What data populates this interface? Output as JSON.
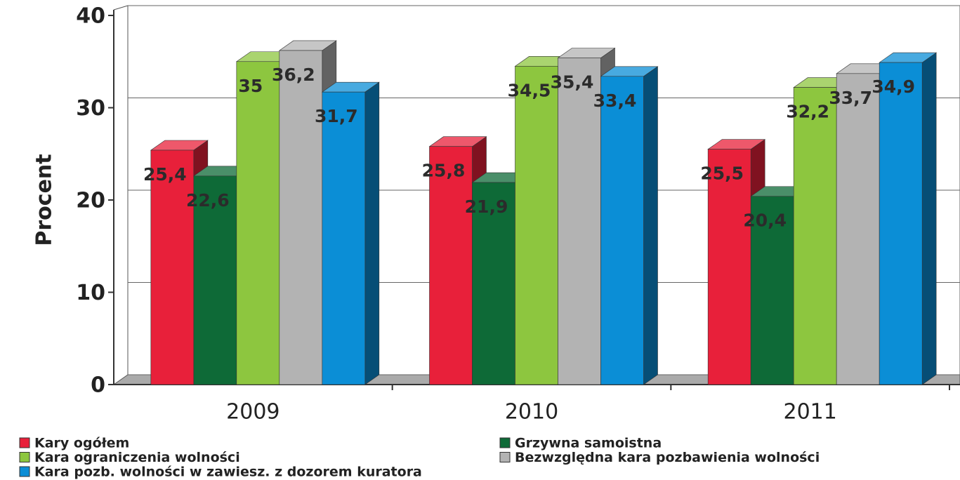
{
  "chart_data": {
    "type": "bar3d",
    "ylabel": "Procent",
    "categories": [
      "2009",
      "2010",
      "2011"
    ],
    "ylim": [
      0,
      40
    ],
    "yticks": [
      0,
      10,
      20,
      30,
      40
    ],
    "grid": true,
    "series": [
      {
        "name": "Kary ogółem",
        "color": "#e8203a",
        "values": [
          25.4,
          25.8,
          25.5
        ],
        "value_labels": [
          "25,4",
          "25,8",
          "25,5"
        ]
      },
      {
        "name": "Grzywna samoistna",
        "color": "#0e6a37",
        "values": [
          22.6,
          21.9,
          20.4
        ],
        "value_labels": [
          "22,6",
          "21,9",
          "20,4"
        ]
      },
      {
        "name": "Kara ograniczenia wolności",
        "color": "#8dc63f",
        "values": [
          35,
          34.5,
          32.2
        ],
        "value_labels": [
          "35",
          "34,5",
          "32,2"
        ]
      },
      {
        "name": "Bezwzględna kara pozbawienia wolności",
        "color": "#b3b3b3",
        "values": [
          36.2,
          35.4,
          33.7
        ],
        "value_labels": [
          "36,2",
          "35,4",
          "33,7"
        ]
      },
      {
        "name": "Kara pozb. wolności w zawiesz. z dozorem kuratora",
        "color": "#0b8ed6",
        "values": [
          31.7,
          33.4,
          34.9
        ],
        "value_labels": [
          "31,7",
          "33,4",
          "34,9"
        ]
      }
    ]
  }
}
